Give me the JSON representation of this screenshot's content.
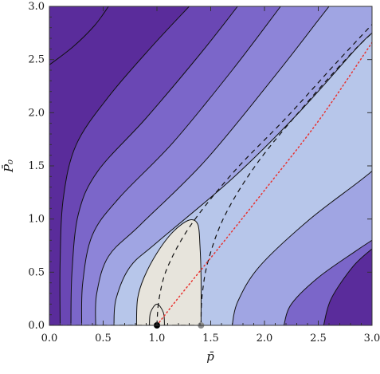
{
  "chart_data": {
    "type": "contour",
    "xlabel": "p̄",
    "ylabel": "P̄₀",
    "xlim": [
      0.0,
      3.0
    ],
    "ylim": [
      0.0,
      3.0
    ],
    "x_ticks": [
      "0.0",
      "0.5",
      "1.0",
      "1.5",
      "2.0",
      "2.5",
      "3.0"
    ],
    "y_ticks": [
      "0.0",
      "0.5",
      "1.0",
      "1.5",
      "2.0",
      "2.5",
      "3.0"
    ],
    "fill_levels": [
      "#5a2c9b",
      "#6a47b4",
      "#7b66c9",
      "#8d84d8",
      "#a0a5e3",
      "#b7c6ea",
      "#cfdbea",
      "#e7e4dc"
    ],
    "contours": [
      {
        "points": [
          [
            0.0,
            2.45
          ],
          [
            0.22,
            2.62
          ],
          [
            0.42,
            2.82
          ],
          [
            0.55,
            3.0
          ]
        ]
      },
      {
        "points": [
          [
            0.1,
            0.0
          ],
          [
            0.1,
            0.6
          ],
          [
            0.13,
            1.2
          ],
          [
            0.25,
            1.7
          ],
          [
            0.55,
            2.15
          ],
          [
            0.95,
            2.62
          ],
          [
            1.3,
            3.0
          ]
        ]
      },
      {
        "points": [
          [
            0.2,
            0.0
          ],
          [
            0.21,
            0.5
          ],
          [
            0.27,
            1.05
          ],
          [
            0.45,
            1.45
          ],
          [
            0.9,
            1.95
          ],
          [
            1.4,
            2.55
          ],
          [
            1.75,
            3.0
          ]
        ]
      },
      {
        "points": [
          [
            0.3,
            0.0
          ],
          [
            0.31,
            0.4
          ],
          [
            0.4,
            0.85
          ],
          [
            0.65,
            1.2
          ],
          [
            1.15,
            1.72
          ],
          [
            1.7,
            2.4
          ],
          [
            2.15,
            3.0
          ]
        ]
      },
      {
        "points": [
          [
            0.43,
            0.0
          ],
          [
            0.44,
            0.3
          ],
          [
            0.55,
            0.65
          ],
          [
            0.85,
            0.95
          ],
          [
            1.45,
            1.55
          ],
          [
            2.1,
            2.35
          ],
          [
            2.5,
            2.87
          ],
          [
            2.6,
            3.0
          ]
        ]
      },
      {
        "points": [
          [
            0.6,
            0.0
          ],
          [
            0.62,
            0.25
          ],
          [
            0.75,
            0.55
          ],
          [
            1.0,
            0.78
          ],
          [
            1.7,
            1.38
          ],
          [
            2.3,
            1.98
          ],
          [
            2.85,
            2.6
          ],
          [
            3.0,
            2.75
          ]
        ]
      },
      {
        "points": [
          [
            1.7,
            0.0
          ],
          [
            1.75,
            0.22
          ],
          [
            1.95,
            0.55
          ],
          [
            2.4,
            0.98
          ],
          [
            2.85,
            1.33
          ],
          [
            3.0,
            1.45
          ]
        ]
      },
      {
        "points": [
          [
            2.18,
            0.0
          ],
          [
            2.25,
            0.2
          ],
          [
            2.5,
            0.45
          ],
          [
            2.85,
            0.7
          ],
          [
            3.0,
            0.8
          ]
        ]
      },
      {
        "points": [
          [
            2.55,
            0.0
          ],
          [
            2.62,
            0.25
          ],
          [
            2.82,
            0.55
          ],
          [
            3.0,
            0.72
          ]
        ]
      }
    ],
    "closed_contours": [
      {
        "points": [
          [
            0.81,
            0.0
          ],
          [
            0.82,
            0.25
          ],
          [
            0.88,
            0.45
          ],
          [
            1.0,
            0.68
          ],
          [
            1.15,
            0.88
          ],
          [
            1.3,
            0.99
          ],
          [
            1.38,
            0.95
          ],
          [
            1.4,
            0.75
          ],
          [
            1.41,
            0.45
          ],
          [
            1.41,
            0.0
          ]
        ]
      },
      {
        "points": [
          [
            0.93,
            0.0
          ],
          [
            0.94,
            0.12
          ],
          [
            1.0,
            0.2
          ],
          [
            1.06,
            0.12
          ],
          [
            1.07,
            0.0
          ]
        ]
      }
    ],
    "dashed_curves": [
      {
        "points": [
          [
            0.0,
            0.0
          ],
          [
            1.41,
            0.0
          ]
        ]
      },
      {
        "points": [
          [
            1.0,
            0.0
          ],
          [
            1.02,
            0.25
          ],
          [
            1.1,
            0.55
          ],
          [
            1.32,
            0.95
          ],
          [
            1.72,
            1.45
          ],
          [
            2.2,
            1.95
          ],
          [
            2.65,
            2.45
          ],
          [
            3.0,
            2.83
          ]
        ]
      },
      {
        "points": [
          [
            1.41,
            0.0
          ],
          [
            1.42,
            0.28
          ],
          [
            1.48,
            0.62
          ],
          [
            1.64,
            1.05
          ],
          [
            1.95,
            1.55
          ],
          [
            2.4,
            2.1
          ],
          [
            2.8,
            2.55
          ],
          [
            3.0,
            2.75
          ]
        ]
      }
    ],
    "dotted_curve": {
      "color": "#e8322f",
      "points": [
        [
          1.0,
          0.0
        ],
        [
          1.2,
          0.26
        ],
        [
          1.6,
          0.76
        ],
        [
          2.0,
          1.27
        ],
        [
          2.5,
          1.92
        ],
        [
          3.0,
          2.66
        ]
      ]
    },
    "markers": [
      {
        "x": 1.0,
        "y": 0.0,
        "color": "#000000"
      },
      {
        "x": 1.41,
        "y": 0.0,
        "color": "#8c8c8c"
      }
    ]
  }
}
